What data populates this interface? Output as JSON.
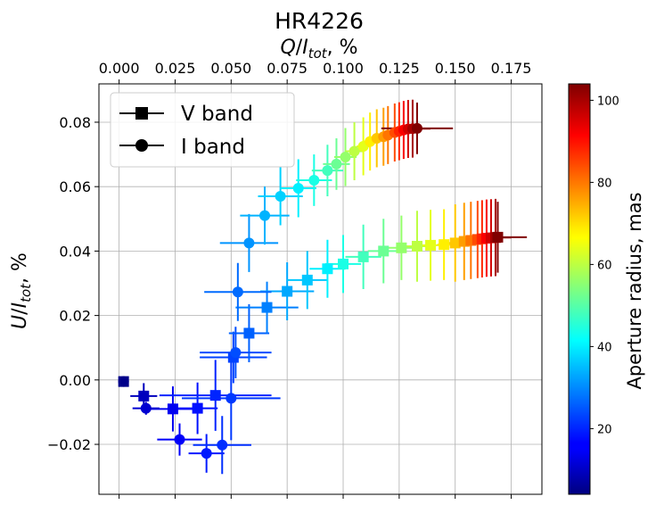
{
  "chart_data": {
    "type": "scatter",
    "title": "HR4226",
    "xlabel_top": "Q/I_tot, %",
    "ylabel": "U/I_tot, %",
    "xlabel_bottom": "",
    "xlim": [
      -0.009,
      0.1887
    ],
    "ylim": [
      -0.0355,
      0.0919
    ],
    "x_ticks": [
      "0.000",
      "0.025",
      "0.050",
      "0.075",
      "0.100",
      "0.125",
      "0.150",
      "0.175"
    ],
    "y_ticks": [
      "−0.02",
      "0.00",
      "0.02",
      "0.04",
      "0.06",
      "0.08"
    ],
    "grid": true,
    "legend_position": "top-left",
    "colorbar": {
      "label": "Aperture radius, mas",
      "colormap": "jet",
      "range": [
        4,
        104
      ],
      "ticks": [
        20,
        40,
        60,
        80,
        100
      ]
    },
    "series": [
      {
        "name": "V band",
        "marker": "square",
        "points": [
          {
            "r": 5,
            "x": 0.002,
            "y": -0.0005,
            "xerr": 0.001,
            "yerr": 0.001
          },
          {
            "r": 10,
            "x": 0.011,
            "y": -0.005,
            "xerr": 0.006,
            "yerr": 0.004
          },
          {
            "r": 15,
            "x": 0.024,
            "y": -0.009,
            "xerr": 0.011,
            "yerr": 0.007
          },
          {
            "r": 18,
            "x": 0.035,
            "y": -0.0088,
            "xerr": 0.009,
            "yerr": 0.008
          },
          {
            "r": 20,
            "x": 0.043,
            "y": -0.0048,
            "xerr": 0.025,
            "yerr": 0.011
          },
          {
            "r": 23,
            "x": 0.051,
            "y": 0.007,
            "xerr": 0.015,
            "yerr": 0.008
          },
          {
            "r": 26,
            "x": 0.058,
            "y": 0.0145,
            "xerr": 0.009,
            "yerr": 0.009
          },
          {
            "r": 29,
            "x": 0.066,
            "y": 0.0225,
            "xerr": 0.014,
            "yerr": 0.008
          },
          {
            "r": 33,
            "x": 0.075,
            "y": 0.0275,
            "xerr": 0.012,
            "yerr": 0.009
          },
          {
            "r": 36,
            "x": 0.084,
            "y": 0.031,
            "xerr": 0.009,
            "yerr": 0.009
          },
          {
            "r": 40,
            "x": 0.093,
            "y": 0.0345,
            "xerr": 0.008,
            "yerr": 0.009
          },
          {
            "r": 44,
            "x": 0.1,
            "y": 0.036,
            "xerr": 0.008,
            "yerr": 0.009
          },
          {
            "r": 48,
            "x": 0.109,
            "y": 0.0382,
            "xerr": 0.008,
            "yerr": 0.01
          },
          {
            "r": 52,
            "x": 0.118,
            "y": 0.04,
            "xerr": 0.007,
            "yerr": 0.01
          },
          {
            "r": 56,
            "x": 0.126,
            "y": 0.041,
            "xerr": 0.006,
            "yerr": 0.01
          },
          {
            "r": 60,
            "x": 0.133,
            "y": 0.0415,
            "xerr": 0.005,
            "yerr": 0.011
          },
          {
            "r": 64,
            "x": 0.139,
            "y": 0.0418,
            "xerr": 0.004,
            "yerr": 0.011
          },
          {
            "r": 68,
            "x": 0.145,
            "y": 0.042,
            "xerr": 0.003,
            "yerr": 0.011
          },
          {
            "r": 72,
            "x": 0.15,
            "y": 0.0425,
            "xerr": 0.003,
            "yerr": 0.012
          },
          {
            "r": 76,
            "x": 0.154,
            "y": 0.043,
            "xerr": 0.003,
            "yerr": 0.012
          },
          {
            "r": 80,
            "x": 0.157,
            "y": 0.0433,
            "xerr": 0.003,
            "yerr": 0.012
          },
          {
            "r": 84,
            "x": 0.16,
            "y": 0.0436,
            "xerr": 0.003,
            "yerr": 0.012
          },
          {
            "r": 88,
            "x": 0.162,
            "y": 0.0438,
            "xerr": 0.003,
            "yerr": 0.012
          },
          {
            "r": 92,
            "x": 0.164,
            "y": 0.044,
            "xerr": 0.003,
            "yerr": 0.012
          },
          {
            "r": 96,
            "x": 0.166,
            "y": 0.0441,
            "xerr": 0.004,
            "yerr": 0.012
          },
          {
            "r": 100,
            "x": 0.168,
            "y": 0.0442,
            "xerr": 0.007,
            "yerr": 0.012
          },
          {
            "r": 104,
            "x": 0.169,
            "y": 0.0443,
            "xerr": 0.013,
            "yerr": 0.011
          }
        ]
      },
      {
        "name": "I band",
        "marker": "circle",
        "points": [
          {
            "r": 5,
            "x": 0.002,
            "y": -0.0005,
            "xerr": 0.001,
            "yerr": 0.001
          },
          {
            "r": 12,
            "x": 0.012,
            "y": -0.0088,
            "xerr": 0.006,
            "yerr": 0.002
          },
          {
            "r": 16,
            "x": 0.027,
            "y": -0.0185,
            "xerr": 0.01,
            "yerr": 0.005
          },
          {
            "r": 19,
            "x": 0.039,
            "y": -0.0228,
            "xerr": 0.008,
            "yerr": 0.006
          },
          {
            "r": 21,
            "x": 0.046,
            "y": -0.0202,
            "xerr": 0.013,
            "yerr": 0.009
          },
          {
            "r": 22,
            "x": 0.05,
            "y": -0.0057,
            "xerr": 0.022,
            "yerr": 0.013
          },
          {
            "r": 24,
            "x": 0.052,
            "y": 0.0085,
            "xerr": 0.016,
            "yerr": 0.008
          },
          {
            "r": 27,
            "x": 0.053,
            "y": 0.0273,
            "xerr": 0.015,
            "yerr": 0.009
          },
          {
            "r": 31,
            "x": 0.058,
            "y": 0.0425,
            "xerr": 0.013,
            "yerr": 0.009
          },
          {
            "r": 34,
            "x": 0.065,
            "y": 0.051,
            "xerr": 0.011,
            "yerr": 0.009
          },
          {
            "r": 37,
            "x": 0.072,
            "y": 0.057,
            "xerr": 0.01,
            "yerr": 0.009
          },
          {
            "r": 40,
            "x": 0.08,
            "y": 0.0595,
            "xerr": 0.008,
            "yerr": 0.009
          },
          {
            "r": 44,
            "x": 0.087,
            "y": 0.062,
            "xerr": 0.008,
            "yerr": 0.008
          },
          {
            "r": 48,
            "x": 0.093,
            "y": 0.065,
            "xerr": 0.007,
            "yerr": 0.008
          },
          {
            "r": 52,
            "x": 0.097,
            "y": 0.067,
            "xerr": 0.006,
            "yerr": 0.008
          },
          {
            "r": 56,
            "x": 0.101,
            "y": 0.0692,
            "xerr": 0.005,
            "yerr": 0.009
          },
          {
            "r": 60,
            "x": 0.105,
            "y": 0.071,
            "xerr": 0.004,
            "yerr": 0.009
          },
          {
            "r": 64,
            "x": 0.109,
            "y": 0.0725,
            "xerr": 0.003,
            "yerr": 0.009
          },
          {
            "r": 68,
            "x": 0.112,
            "y": 0.074,
            "xerr": 0.003,
            "yerr": 0.009
          },
          {
            "r": 72,
            "x": 0.115,
            "y": 0.075,
            "xerr": 0.003,
            "yerr": 0.009
          },
          {
            "r": 76,
            "x": 0.118,
            "y": 0.0755,
            "xerr": 0.003,
            "yerr": 0.009
          },
          {
            "r": 80,
            "x": 0.12,
            "y": 0.076,
            "xerr": 0.003,
            "yerr": 0.009
          },
          {
            "r": 84,
            "x": 0.123,
            "y": 0.0768,
            "xerr": 0.003,
            "yerr": 0.009
          },
          {
            "r": 88,
            "x": 0.125,
            "y": 0.0772,
            "xerr": 0.003,
            "yerr": 0.009
          },
          {
            "r": 92,
            "x": 0.127,
            "y": 0.0776,
            "xerr": 0.004,
            "yerr": 0.009
          },
          {
            "r": 96,
            "x": 0.129,
            "y": 0.0779,
            "xerr": 0.005,
            "yerr": 0.009
          },
          {
            "r": 100,
            "x": 0.131,
            "y": 0.078,
            "xerr": 0.008,
            "yerr": 0.009
          },
          {
            "r": 104,
            "x": 0.133,
            "y": 0.0781,
            "xerr": 0.016,
            "yerr": 0.008
          }
        ]
      }
    ]
  }
}
